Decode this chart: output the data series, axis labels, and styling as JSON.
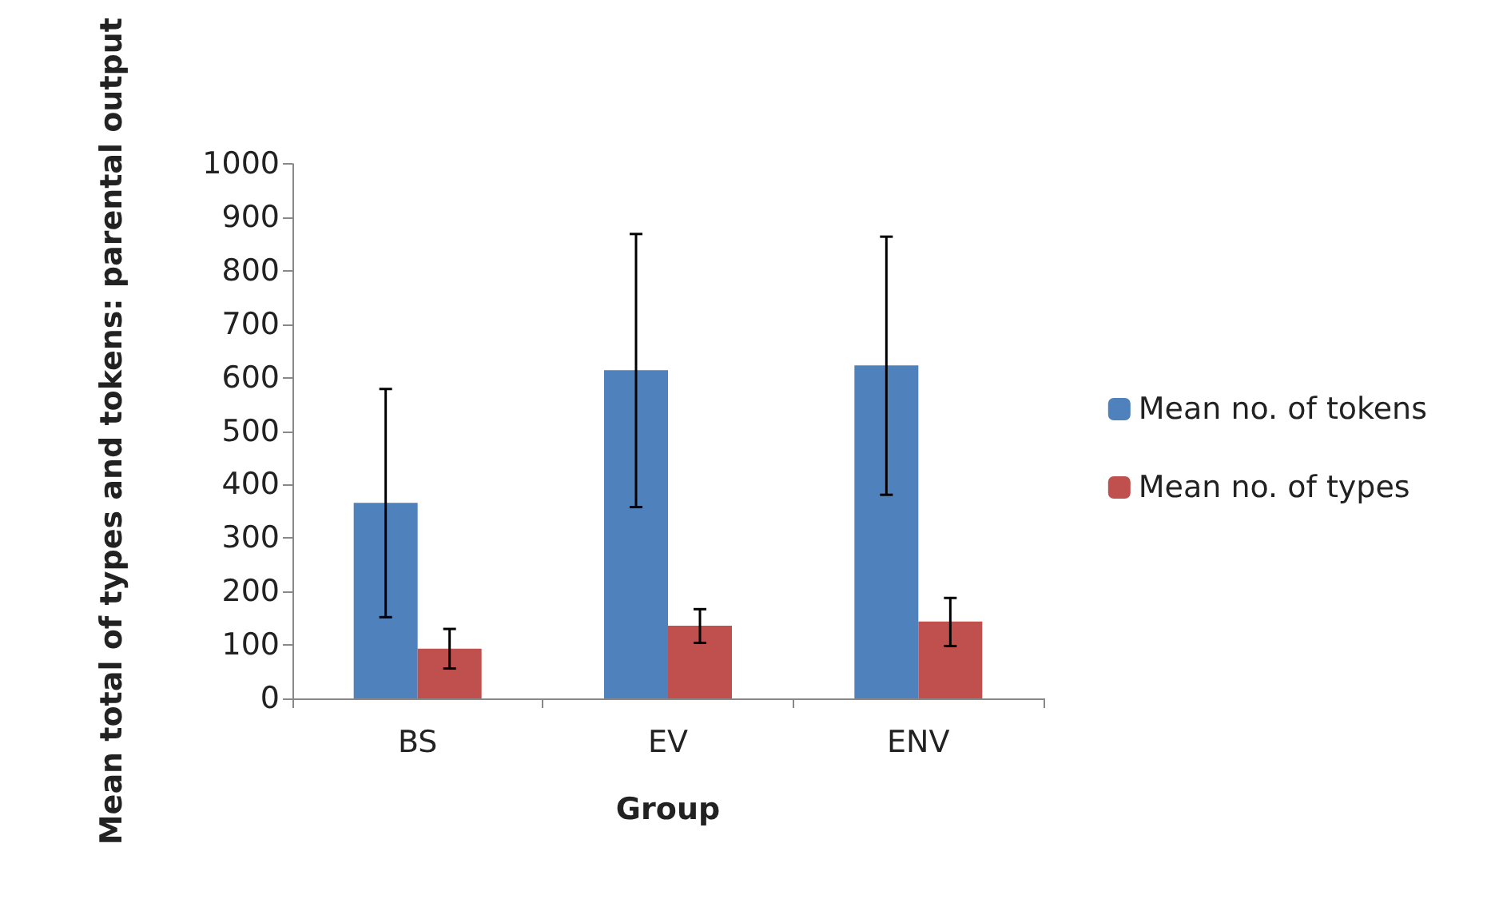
{
  "chart_data": {
    "type": "bar",
    "xlabel": "Group",
    "ylabel": "Mean total of types and tokens: parental output",
    "categories": [
      "BS",
      "EV",
      "ENV"
    ],
    "series": [
      {
        "name": "Mean no. of tokens",
        "color": "#4f81bd",
        "values": [
          366,
          614,
          623
        ],
        "errors": [
          [
            152,
            579
          ],
          [
            358,
            869
          ],
          [
            381,
            864
          ]
        ]
      },
      {
        "name": "Mean no. of types",
        "color": "#c0504d",
        "values": [
          93,
          136,
          144
        ],
        "errors": [
          [
            56,
            130
          ],
          [
            104,
            167
          ],
          [
            98,
            188
          ]
        ]
      }
    ],
    "ylim": [
      0,
      1000
    ],
    "yticks": [
      0,
      100,
      200,
      300,
      400,
      500,
      600,
      700,
      800,
      900,
      1000
    ],
    "grid": false,
    "legend": "right"
  }
}
